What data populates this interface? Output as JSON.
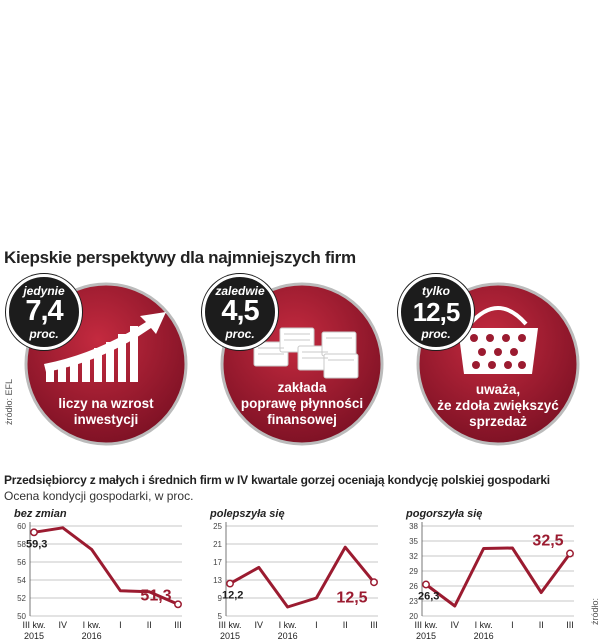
{
  "headline": "Kiepskie perspektywy dla najmniejszych firm",
  "stats": [
    {
      "prefix": "jedynie",
      "value": "7,4",
      "unit": "proc.",
      "desc": [
        "liczy na wzrost",
        "inwestycji"
      ],
      "icon": "growth-chart-icon"
    },
    {
      "prefix": "zaledwie",
      "value": "4,5",
      "unit": "proc.",
      "desc": [
        "zakłada",
        "poprawę płynności",
        "finansowej"
      ],
      "icon": "money-stacks-icon"
    },
    {
      "prefix": "tylko",
      "value": "12,5",
      "unit": "proc.",
      "desc": [
        "uważa,",
        "że zdoła zwiększyć",
        "sprzedaż"
      ],
      "icon": "shopping-basket-icon"
    }
  ],
  "source_top": "źródło: EFL",
  "charts_title": "Przedsiębiorcy z małych i średnich firm w IV kwartale gorzej oceniają kondycję polskiej gospodarki",
  "charts_subtitle": "Ocena kondycji gospodarki,  w proc.",
  "source_bottom": "źródło: Keralla Research",
  "colors": {
    "accent": "#9b1b30",
    "dark": "#1c1c1c"
  },
  "chart_data": [
    {
      "type": "line",
      "title": "bez zmian",
      "categories": [
        "III kw. 2015",
        "IV",
        "I kw. 2016",
        "I",
        "II",
        "III"
      ],
      "values": [
        59.3,
        59.8,
        57.4,
        52.8,
        52.7,
        51.3
      ],
      "ylim": [
        50,
        60
      ],
      "yticks": [
        50,
        52,
        54,
        56,
        58,
        60
      ],
      "first_label": "59,3",
      "last_label": "51,3",
      "xtick_labels": [
        [
          "III kw.",
          "2015"
        ],
        [
          "IV",
          ""
        ],
        [
          "I kw.",
          "2016"
        ],
        [
          "I",
          ""
        ],
        [
          "II",
          ""
        ],
        [
          "III",
          ""
        ]
      ]
    },
    {
      "type": "line",
      "title": "polepszyła się",
      "categories": [
        "III kw. 2015",
        "IV",
        "I kw. 2016",
        "I",
        "II",
        "III"
      ],
      "values": [
        12.2,
        15.8,
        7.0,
        9.0,
        20.3,
        12.5
      ],
      "ylim": [
        5,
        25
      ],
      "yticks": [
        5,
        9,
        13,
        17,
        21,
        25
      ],
      "first_label": "12,2",
      "last_label": "12,5",
      "xtick_labels": [
        [
          "III kw.",
          "2015"
        ],
        [
          "IV",
          ""
        ],
        [
          "I kw.",
          "2016"
        ],
        [
          "I",
          ""
        ],
        [
          "II",
          ""
        ],
        [
          "III",
          ""
        ]
      ]
    },
    {
      "type": "line",
      "title": "pogorszyła się",
      "categories": [
        "III kw. 2015",
        "IV",
        "I kw. 2016",
        "I",
        "II",
        "III"
      ],
      "values": [
        26.3,
        22.0,
        33.5,
        33.6,
        24.7,
        32.5
      ],
      "ylim": [
        20,
        38
      ],
      "yticks": [
        20,
        23,
        26,
        29,
        32,
        35,
        38
      ],
      "first_label": "26,3",
      "last_label": "32,5",
      "xtick_labels": [
        [
          "III kw.",
          "2015"
        ],
        [
          "IV",
          ""
        ],
        [
          "I kw.",
          "2016"
        ],
        [
          "I",
          ""
        ],
        [
          "II",
          ""
        ],
        [
          "III",
          ""
        ]
      ]
    }
  ]
}
